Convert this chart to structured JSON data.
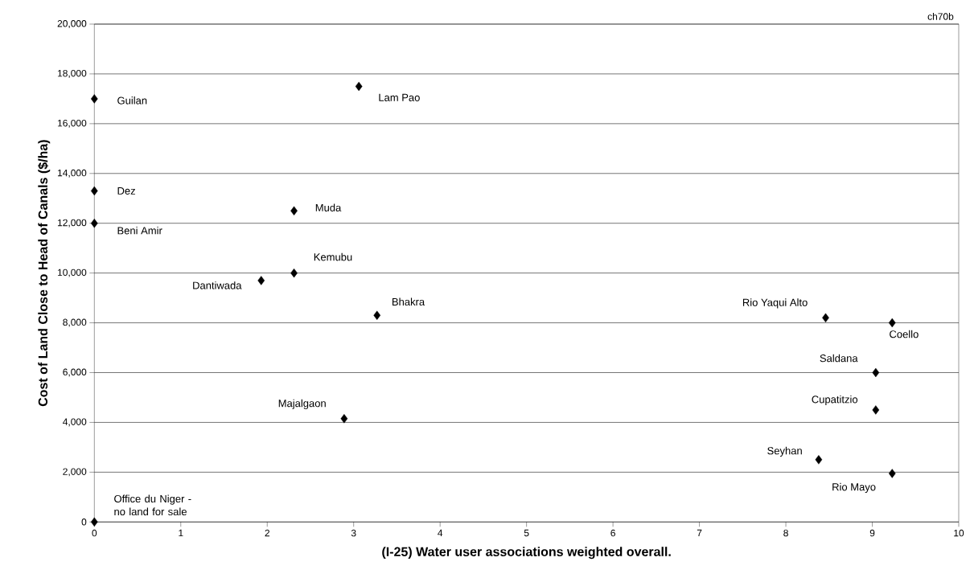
{
  "chart_data": {
    "type": "scatter",
    "xlabel": "(I-25)  Water user associations weighted overall.",
    "ylabel": "Cost of Land  Close to Head of Canals ($/ha)",
    "x": [
      0,
      3.06,
      0,
      2.31,
      0,
      2.31,
      1.93,
      3.27,
      2.89,
      8.46,
      9.23,
      9.04,
      9.04,
      8.38,
      9.23,
      0
    ],
    "series": [
      {
        "color": "#000000",
        "values": [
          17000,
          17500,
          13300,
          12500,
          12000,
          10000,
          9700,
          8300,
          4150,
          8200,
          8000,
          6000,
          4500,
          2500,
          1950,
          0
        ]
      }
    ],
    "xlim": [
      0,
      10
    ],
    "ylim": [
      0,
      20000
    ],
    "xticks": [
      0,
      1,
      2,
      3,
      4,
      5,
      6,
      7,
      8,
      9,
      10
    ],
    "yticks": [
      {
        "value": 0,
        "label": "0"
      },
      {
        "value": 2000,
        "label": "2,000"
      },
      {
        "value": 4000,
        "label": "4,000"
      },
      {
        "value": 6000,
        "label": "6,000"
      },
      {
        "value": 8000,
        "label": "8,000"
      },
      {
        "value": 10000,
        "label": "10,000"
      },
      {
        "value": 12000,
        "label": "12,000"
      },
      {
        "value": 14000,
        "label": "14,000"
      },
      {
        "value": 16000,
        "label": "16,000"
      },
      {
        "value": 18000,
        "label": "18,000"
      },
      {
        "value": 20000,
        "label": "20,000"
      }
    ],
    "grid": "y",
    "marker": "diamond",
    "annotations": [
      "ch70b",
      {
        "text": "Guilan",
        "x": 0,
        "y": 17000
      },
      {
        "text": "Lam Pao",
        "x": 3.06,
        "y": 17500
      },
      {
        "text": "Dez",
        "x": 0,
        "y": 13300
      },
      {
        "text": "Muda",
        "x": 2.31,
        "y": 12500
      },
      {
        "text": "Beni Amir",
        "x": 0,
        "y": 12000
      },
      {
        "text": "Kemubu",
        "x": 2.31,
        "y": 10000
      },
      {
        "text": "Dantiwada",
        "x": 1.93,
        "y": 9700
      },
      {
        "text": "Bhakra",
        "x": 3.27,
        "y": 8300
      },
      {
        "text": "Majalgaon",
        "x": 2.89,
        "y": 4150
      },
      {
        "text": "Rio Yaqui Alto",
        "x": 8.46,
        "y": 8200
      },
      {
        "text": "Coello",
        "x": 9.23,
        "y": 8000
      },
      {
        "text": "Saldana",
        "x": 9.04,
        "y": 6000
      },
      {
        "text": "Cupatitzio",
        "x": 9.04,
        "y": 4500
      },
      {
        "text": "Seyhan",
        "x": 8.38,
        "y": 2500
      },
      {
        "text": "Rio Mayo",
        "x": 9.23,
        "y": 1950
      },
      {
        "text": "Office du Niger - no land for sale",
        "x": 0,
        "y": 0
      }
    ]
  }
}
